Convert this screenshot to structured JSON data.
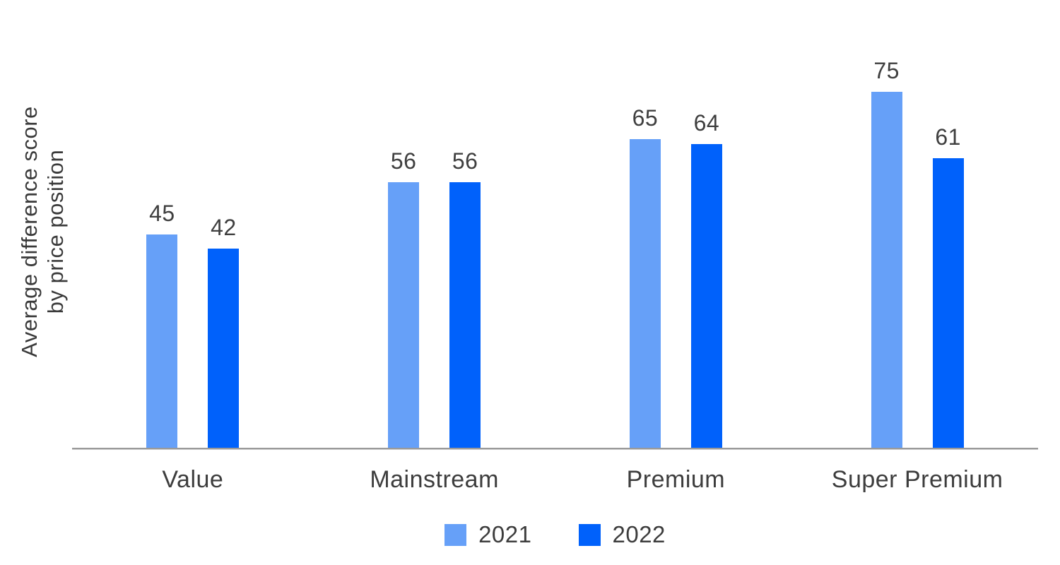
{
  "chart_data": {
    "type": "bar",
    "title": "",
    "xlabel": "",
    "ylabel": "Average difference score by price position",
    "ylabel_lines": [
      "Average difference score",
      "by price position"
    ],
    "categories": [
      "Value",
      "Mainstream",
      "Premium",
      "Super Premium"
    ],
    "series": [
      {
        "name": "2021",
        "color": "#66A0F8",
        "values": [
          45,
          56,
          65,
          75
        ]
      },
      {
        "name": "2022",
        "color": "#0061FB",
        "values": [
          42,
          56,
          64,
          61
        ]
      }
    ],
    "ylim": [
      0,
      94.3
    ],
    "grid": false,
    "data_labels": true,
    "legend_position": "bottom",
    "axis_line_color": "#9a9a9a",
    "label_text_color": "#3f3f3f"
  }
}
